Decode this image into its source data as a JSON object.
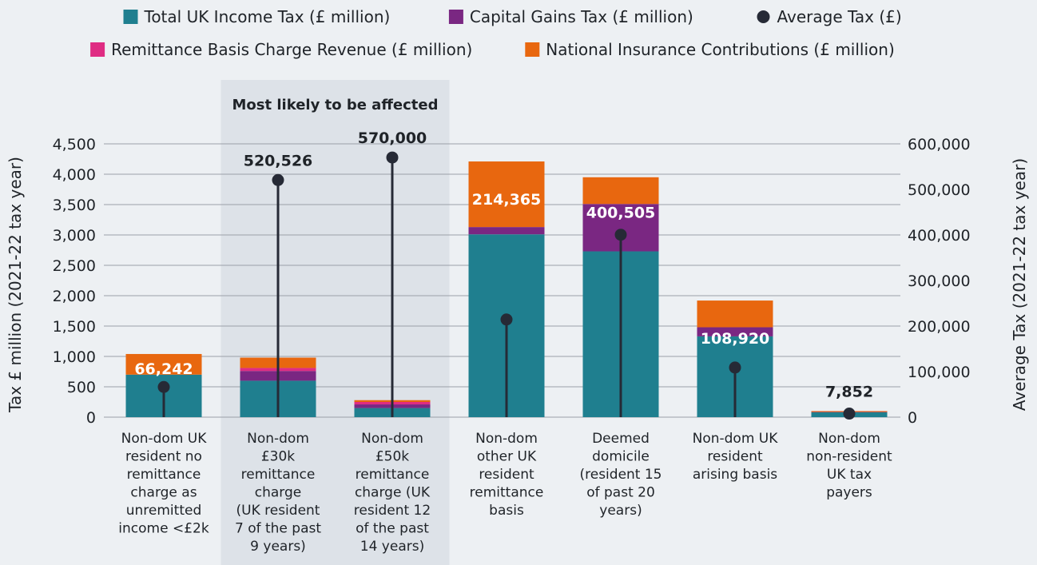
{
  "chart_data": {
    "type": "bar",
    "stacked": true,
    "legend": {
      "placement": "top-center",
      "items": [
        {
          "name": "Total UK Income Tax (£ million)",
          "color": "#1f7f8f",
          "shape": "square"
        },
        {
          "name": "Capital Gains Tax (£ million)",
          "color": "#7a2782",
          "shape": "square"
        },
        {
          "name": "Average Tax (£)",
          "color": "#262a36",
          "shape": "circle"
        },
        {
          "name": "Remittance Basis Charge Revenue (£ million)",
          "color": "#df2c83",
          "shape": "square"
        },
        {
          "name": "National Insurance Contributions (£ million)",
          "color": "#e8670f",
          "shape": "square"
        }
      ]
    },
    "categories": [
      [
        "Non-dom UK",
        "resident no",
        "remittance",
        "charge as",
        "unremitted",
        "income <£2k"
      ],
      [
        "Non-dom",
        "£30k",
        "remittance",
        "charge",
        "(UK resident",
        "7 of the past",
        "9 years)"
      ],
      [
        "Non-dom",
        "£50k",
        "remittance",
        "charge (UK",
        "resident 12",
        "of the past",
        "14 years)"
      ],
      [
        "Non-dom",
        "other UK",
        "resident",
        "remittance",
        "basis"
      ],
      [
        "Deemed",
        "domicile",
        "(resident 15",
        "of past 20",
        "years)"
      ],
      [
        "Non-dom UK",
        "resident",
        "arising basis"
      ],
      [
        "Non-dom",
        "non-resident",
        "UK tax",
        "payers"
      ]
    ],
    "series": [
      {
        "name": "Total UK Income Tax (£ million)",
        "color": "#1f7f8f",
        "values": [
          700,
          600,
          150,
          3010,
          2730,
          1330,
          80
        ]
      },
      {
        "name": "Capital Gains Tax (£ million)",
        "color": "#7a2782",
        "values": [
          0,
          160,
          60,
          120,
          780,
          150,
          5
        ]
      },
      {
        "name": "Remittance Basis Charge Revenue (£ million)",
        "color": "#df2c83",
        "values": [
          0,
          50,
          40,
          0,
          0,
          0,
          0
        ]
      },
      {
        "name": "National Insurance Contributions (£ million)",
        "color": "#e8670f",
        "values": [
          340,
          170,
          30,
          1080,
          440,
          440,
          15
        ]
      }
    ],
    "average_tax": {
      "name": "Average Tax (£)",
      "color": "#262a36",
      "values": [
        66242,
        520526,
        570000,
        214365,
        400505,
        108920,
        7852
      ],
      "labels": [
        "66,242",
        "520,526",
        "570,000",
        "214,365",
        "400,505",
        "108,920",
        "7,852"
      ],
      "label_colors": [
        "#ffffff",
        "#1f2328",
        "#1f2328",
        "#ffffff",
        "#ffffff",
        "#ffffff",
        "#1f2328"
      ]
    },
    "y_left": {
      "label": "Tax £ million (2021-22 tax year)",
      "range": [
        0,
        4500
      ],
      "ticks": [
        0,
        500,
        1000,
        1500,
        2000,
        2500,
        3000,
        3500,
        4000,
        4500
      ],
      "tick_labels": [
        "0",
        "500",
        "1,000",
        "1,500",
        "2,000",
        "2,500",
        "3,000",
        "3,500",
        "4,000",
        "4,500"
      ]
    },
    "y_right": {
      "label": "Average Tax (2021-22 tax year)",
      "range": [
        0,
        600000
      ],
      "ticks": [
        0,
        100000,
        200000,
        300000,
        400000,
        500000,
        600000
      ],
      "tick_labels": [
        "0",
        "100,000",
        "200,000",
        "300,000",
        "400,000",
        "500,000",
        "600,000"
      ]
    },
    "highlight_band": {
      "title": "Most likely to be affected",
      "from_category": 1,
      "to_category": 3,
      "color": "#dde2e8"
    },
    "grid": true,
    "background": "#edf0f3"
  }
}
